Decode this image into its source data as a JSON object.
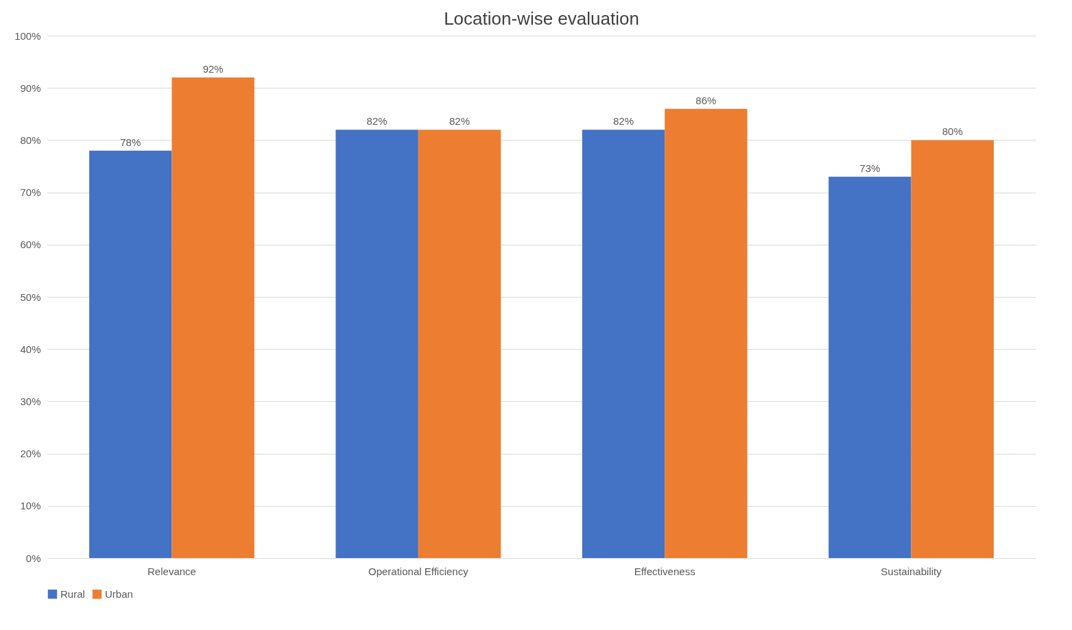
{
  "chart_data": {
    "type": "bar",
    "title": "Location-wise evaluation",
    "categories": [
      "Relevance",
      "Operational Efficiency",
      "Effectiveness",
      "Sustainability"
    ],
    "series": [
      {
        "name": "Rural",
        "color": "#4472c4",
        "values": [
          78,
          82,
          82,
          73
        ],
        "value_labels": [
          "78%",
          "82%",
          "82%",
          "73%"
        ]
      },
      {
        "name": "Urban",
        "color": "#ed7d31",
        "values": [
          92,
          82,
          86,
          80
        ],
        "value_labels": [
          "92%",
          "82%",
          "86%",
          "80%"
        ]
      }
    ],
    "ylim": [
      0,
      100
    ],
    "yticks": [
      {
        "value": 0,
        "label": "0%"
      },
      {
        "value": 10,
        "label": "10%"
      },
      {
        "value": 20,
        "label": "20%"
      },
      {
        "value": 30,
        "label": "30%"
      },
      {
        "value": 40,
        "label": "40%"
      },
      {
        "value": 50,
        "label": "50%"
      },
      {
        "value": 60,
        "label": "60%"
      },
      {
        "value": 70,
        "label": "70%"
      },
      {
        "value": 80,
        "label": "80%"
      },
      {
        "value": 90,
        "label": "90%"
      },
      {
        "value": 100,
        "label": "100%"
      }
    ],
    "grid": "y",
    "legend": "bottom"
  }
}
